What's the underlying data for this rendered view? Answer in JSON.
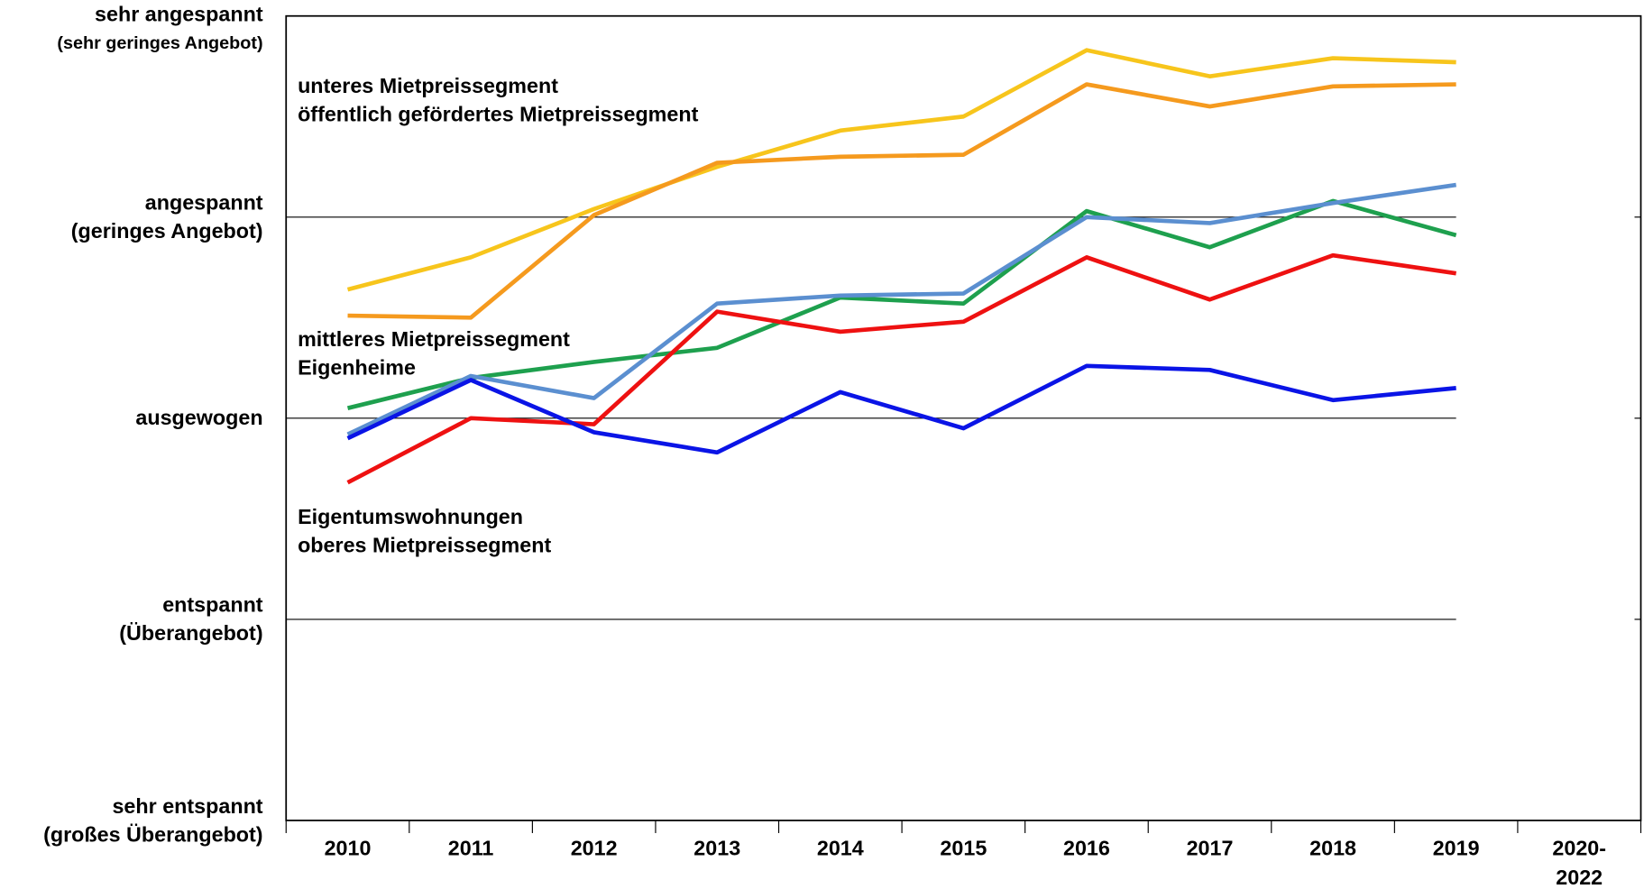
{
  "chart_data": {
    "type": "line",
    "categories": [
      "2010",
      "2011",
      "2012",
      "2013",
      "2014",
      "2015",
      "2016",
      "2017",
      "2018",
      "2019",
      "2020-\n2022"
    ],
    "ylim": [
      -2,
      2
    ],
    "yticks": [
      {
        "value": -2,
        "label": "sehr entspannt\n(großes Überangebot)"
      },
      {
        "value": -1,
        "label": "entspannt\n(Überangebot)"
      },
      {
        "value": 0,
        "label": "ausgewogen"
      },
      {
        "value": 1,
        "label": "angespannt\n(geringes Angebot)"
      },
      {
        "value": 2,
        "label": "sehr angespannt\n(sehr geringes Angebot)"
      }
    ],
    "grid": true,
    "series": [
      {
        "name": "unteres Mietpreissegment",
        "color": "#f7c51c",
        "values": [
          0.64,
          0.8,
          1.04,
          1.25,
          1.43,
          1.5,
          1.83,
          1.7,
          1.79,
          1.77,
          null
        ]
      },
      {
        "name": "öffentlich gefördertes Mietpreissegment",
        "color": "#f59a1e",
        "values": [
          0.51,
          0.5,
          1.01,
          1.27,
          1.3,
          1.31,
          1.66,
          1.55,
          1.65,
          1.66,
          null
        ]
      },
      {
        "name": "mittleres Mietpreissegment",
        "color": "#1ea04e",
        "values": [
          0.05,
          0.2,
          0.28,
          0.35,
          0.6,
          0.57,
          1.03,
          0.85,
          1.08,
          0.91,
          null
        ]
      },
      {
        "name": "Eigenheime",
        "color": "#5b8fd0",
        "values": [
          -0.08,
          0.21,
          0.1,
          0.57,
          0.61,
          0.62,
          1.0,
          0.97,
          1.07,
          1.16,
          null
        ]
      },
      {
        "name": "Eigentumswohnungen",
        "color": "#ee1111",
        "values": [
          -0.32,
          0.0,
          -0.03,
          0.53,
          0.43,
          0.48,
          0.8,
          0.59,
          0.81,
          0.72,
          null
        ]
      },
      {
        "name": "oberes Mietpreissegment",
        "color": "#0a14e6",
        "values": [
          -0.1,
          0.19,
          -0.07,
          -0.17,
          0.13,
          -0.05,
          0.26,
          0.24,
          0.09,
          0.15,
          null
        ]
      }
    ]
  }
}
